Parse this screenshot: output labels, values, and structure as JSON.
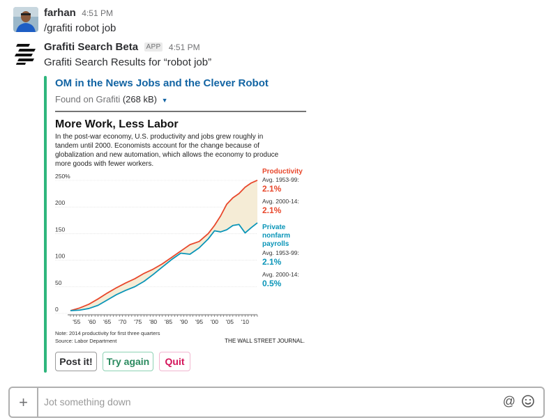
{
  "messages": [
    {
      "sender": "farhan",
      "time": "4:51 PM",
      "text": "/grafiti robot job"
    },
    {
      "sender": "Grafiti Search Beta",
      "badge": "APP",
      "time": "4:51 PM",
      "text": "Grafiti Search Results for “robot job”"
    }
  ],
  "attachment": {
    "title": "OM in the News Jobs and the Clever Robot",
    "source": "Found on Grafiti",
    "size": "(268 kB)",
    "accent_color": "#2eb67d"
  },
  "chart": {
    "heading": "More Work, Less Labor",
    "intro_lines": [
      "In the post-war economy, U.S. productivity and jobs grew roughly in",
      "tandem until 2000. Economists account for the change because of",
      "globalization and new automation, which allows the economy to produce",
      "more goods with fewer workers."
    ],
    "legend": {
      "productivity_label": "Productivity",
      "productivity_avg1_label": "Avg. 1953-99:",
      "productivity_avg1_value": "2.1%",
      "productivity_avg2_label": "Avg. 2000-14:",
      "productivity_avg2_value": "2.1%",
      "payrolls_label_1": "Private",
      "payrolls_label_2": "nonfarm",
      "payrolls_label_3": "payrolls",
      "payrolls_avg1_label": "Avg. 1953-99:",
      "payrolls_avg1_value": "2.1%",
      "payrolls_avg2_label": "Avg. 2000-14:",
      "payrolls_avg2_value": "0.5%"
    },
    "footnote": "Note: 2014 productivity for first three quarters",
    "source": "Source: Labor Department",
    "credit": "THE WALL STREET JOURNAL.",
    "colors": {
      "productivity": "#e8472b",
      "payrolls": "#0a95b8",
      "fill": "#f5ecd6"
    }
  },
  "chart_data": {
    "type": "line",
    "title": "More Work, Less Labor",
    "ylim": [
      0,
      250
    ],
    "y_ticks": [
      "250%",
      "200",
      "150",
      "100",
      "50",
      "0"
    ],
    "x_ticks": [
      "'55",
      "'60",
      "'65",
      "'70",
      "'75",
      "'80",
      "'85",
      "'90",
      "'95",
      "'00",
      "'05",
      "'10"
    ],
    "x": [
      1953,
      1956,
      1959,
      1962,
      1965,
      1968,
      1971,
      1974,
      1977,
      1980,
      1983,
      1986,
      1989,
      1992,
      1995,
      1998,
      2000,
      2002,
      2004,
      2006,
      2008,
      2010,
      2012,
      2014
    ],
    "series": [
      {
        "name": "Productivity",
        "values": [
          0,
          5,
          12,
          22,
          33,
          43,
          52,
          60,
          70,
          78,
          88,
          100,
          112,
          124,
          130,
          145,
          160,
          178,
          200,
          212,
          220,
          232,
          240,
          245
        ]
      },
      {
        "name": "Private nonfarm payrolls",
        "values": [
          0,
          1,
          4,
          10,
          20,
          30,
          38,
          45,
          55,
          68,
          82,
          96,
          108,
          106,
          118,
          135,
          150,
          148,
          152,
          160,
          162,
          146,
          156,
          165
        ]
      }
    ]
  },
  "actions": {
    "post": "Post it!",
    "try_again": "Try again",
    "quit": "Quit"
  },
  "composer": {
    "placeholder": "Jot something down"
  }
}
